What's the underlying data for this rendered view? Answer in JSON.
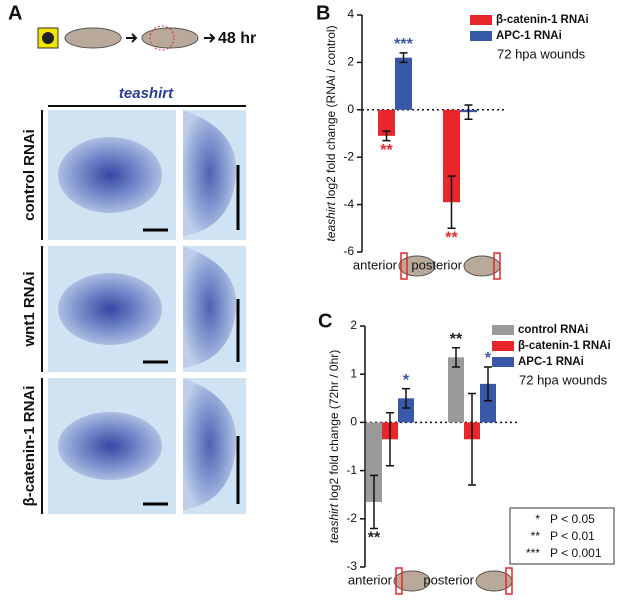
{
  "panel_a": {
    "label": "A",
    "timeline": "48 hr",
    "stain": "teashirt",
    "rows": [
      "control RNAi",
      "wnt1 RNAi",
      "β-catenin-1 RNAi"
    ]
  },
  "chart_data": [
    {
      "type": "bar",
      "panel_label": "B",
      "y_label_gene": "teashirt",
      "y_label": "log2 fold change (RNAi / control)",
      "categories": [
        "anterior",
        "posterior"
      ],
      "ylim": [
        -6,
        4
      ],
      "yticks": [
        -6,
        -4,
        -2,
        0,
        2,
        4
      ],
      "note": "72 hpa wounds",
      "series": [
        {
          "name": "β-catenin-1 RNAi",
          "color": "#e8262b",
          "values": [
            -1.1,
            -3.9
          ],
          "errors": [
            0.2,
            1.1
          ],
          "significance": [
            "**",
            "**"
          ]
        },
        {
          "name": "APC-1 RNAi",
          "color": "#3a58a8",
          "values": [
            2.2,
            -0.1
          ],
          "errors": [
            0.2,
            0.3
          ],
          "significance": [
            "***",
            null
          ]
        }
      ]
    },
    {
      "type": "bar",
      "panel_label": "C",
      "y_label_gene": "teashirt",
      "y_label": "log2 fold change (72hr / 0hr)",
      "categories": [
        "anterior",
        "posterior"
      ],
      "ylim": [
        -3,
        2
      ],
      "yticks": [
        -3,
        -2,
        -1,
        0,
        1,
        2
      ],
      "note": "72 hpa wounds",
      "series": [
        {
          "name": "control RNAi",
          "color": "#9a9a9a",
          "values": [
            -1.65,
            1.35
          ],
          "errors": [
            0.55,
            0.2
          ],
          "significance": [
            "**",
            "**"
          ]
        },
        {
          "name": "β-catenin-1 RNAi",
          "color": "#e8262b",
          "values": [
            -0.35,
            -0.35
          ],
          "errors": [
            0.55,
            0.95
          ],
          "significance": [
            null,
            null
          ]
        },
        {
          "name": "APC-1 RNAi",
          "color": "#3a58a8",
          "values": [
            0.5,
            0.8
          ],
          "errors": [
            0.2,
            0.35
          ],
          "significance": [
            "*",
            "*"
          ]
        }
      ],
      "p_legend": [
        [
          "*",
          "P < 0.05"
        ],
        [
          "**",
          "P < 0.01"
        ],
        [
          "***",
          "P < 0.001"
        ]
      ]
    }
  ]
}
